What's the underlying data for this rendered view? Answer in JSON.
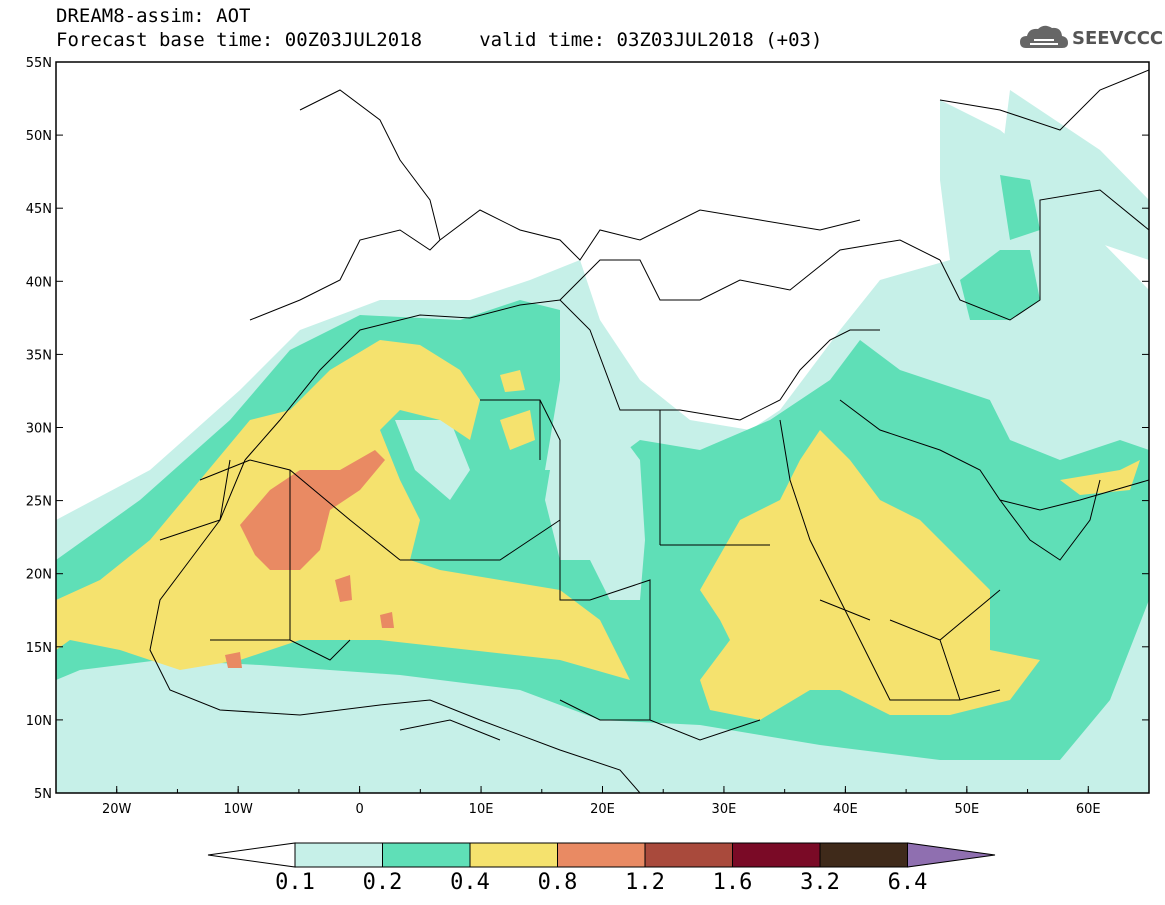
{
  "header": {
    "title_line1": "DREAM8-assim: AOT",
    "title_line2": "Forecast base time: 00Z03JUL2018     valid time: 03Z03JUL2018 (+03)"
  },
  "logo": {
    "icon": "cloud-icon",
    "text": "SEEVCCC"
  },
  "map": {
    "lon_ticks": [
      "20W",
      "10W",
      "0",
      "10E",
      "20E",
      "30E",
      "40E",
      "50E",
      "60E"
    ],
    "lat_ticks": [
      "55N",
      "50N",
      "45N",
      "40N",
      "35N",
      "30N",
      "25N",
      "20N",
      "15N",
      "10N",
      "5N"
    ],
    "lon_range": [
      -25,
      65
    ],
    "lat_range": [
      5,
      55
    ],
    "field": "AOT"
  },
  "colorbar": {
    "labels": [
      "0.1",
      "0.2",
      "0.4",
      "0.8",
      "1.2",
      "1.6",
      "3.2",
      "6.4"
    ],
    "colors": {
      "under": "#ffffff",
      "bins": [
        "#c6f0e8",
        "#5fdfb7",
        "#f5e26e",
        "#e98a63",
        "#a94a3c",
        "#7a0a26",
        "#3f2a1a"
      ],
      "over": "#8f6fb0"
    }
  }
}
